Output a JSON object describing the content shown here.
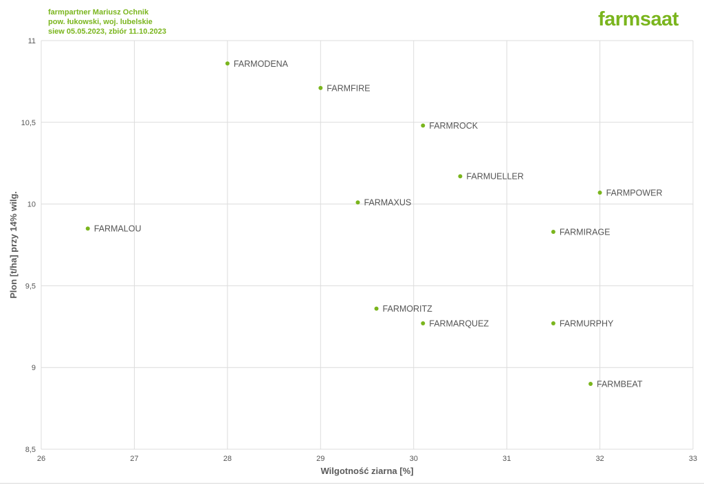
{
  "header": {
    "line1": "farmpartner Mariusz Ochnik",
    "line2": "pow. łukowski, woj. lubelskie",
    "line3": "siew 05.05.2023, zbiór 11.10.2023"
  },
  "brand": {
    "name": "farmsaat",
    "color": "#7ab51d"
  },
  "chart_data": {
    "type": "scatter",
    "xlabel": "Wilgotność ziarna [%]",
    "ylabel": "Plon [t/ha] przy 14% wilg.",
    "xlim": [
      26,
      33
    ],
    "ylim": [
      8.5,
      11
    ],
    "xticks": [
      "26",
      "27",
      "28",
      "29",
      "30",
      "31",
      "32",
      "33"
    ],
    "yticks": [
      "8,5",
      "9",
      "9,5",
      "10",
      "10,5",
      "11"
    ],
    "grid": true,
    "point_color": "#7ab51d",
    "points": [
      {
        "label": "FARMODENA",
        "x": 28.0,
        "y": 10.86
      },
      {
        "label": "FARMFIRE",
        "x": 29.0,
        "y": 10.71
      },
      {
        "label": "FARMROCK",
        "x": 30.1,
        "y": 10.48
      },
      {
        "label": "FARMUELLER",
        "x": 30.5,
        "y": 10.17
      },
      {
        "label": "FARMPOWER",
        "x": 32.0,
        "y": 10.07
      },
      {
        "label": "FARMAXUS",
        "x": 29.4,
        "y": 10.01
      },
      {
        "label": "FARMALOU",
        "x": 26.5,
        "y": 9.85
      },
      {
        "label": "FARMIRAGE",
        "x": 31.5,
        "y": 9.83
      },
      {
        "label": "FARMORITZ",
        "x": 29.6,
        "y": 9.36
      },
      {
        "label": "FARMARQUEZ",
        "x": 30.1,
        "y": 9.27
      },
      {
        "label": "FARMURPHY",
        "x": 31.5,
        "y": 9.27
      },
      {
        "label": "FARMBEAT",
        "x": 31.9,
        "y": 8.9
      }
    ]
  }
}
